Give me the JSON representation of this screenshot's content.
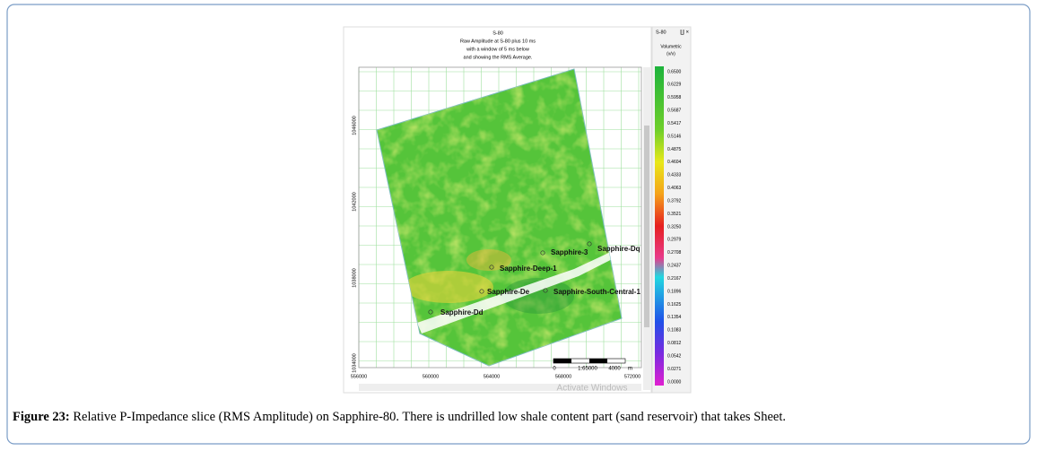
{
  "header": {
    "title": "S-80",
    "lines": [
      "Raw Amplitude at S-80 plus 10 ms",
      "with a window of 5 ms below",
      "and showing the RMS Average."
    ]
  },
  "panel": {
    "title": "S-80",
    "buttons": "∐ ×"
  },
  "colorbar": {
    "title": "Volumetric",
    "unit": "(v/v)",
    "labels": [
      "0.6500",
      "0.6229",
      "0.5958",
      "0.5687",
      "0.5417",
      "0.5146",
      "0.4875",
      "0.4604",
      "0.4333",
      "0.4063",
      "0.3792",
      "0.3521",
      "0.3250",
      "0.2979",
      "0.2708",
      "0.2437",
      "0.2167",
      "0.1896",
      "0.1625",
      "0.1354",
      "0.1083",
      "0.0812",
      "0.0542",
      "0.0271",
      "0.0000"
    ]
  },
  "axes": {
    "x": [
      "556000",
      "560000",
      "564000",
      "568000",
      "572000"
    ],
    "y": [
      "1046000",
      "1042000",
      "1038000",
      "1034000"
    ]
  },
  "wells": [
    "Sapphire-3",
    "Sapphire-Dq",
    "Sapphire-Deep-1",
    "Sapphire-De",
    "Sapphire-South-Central-1",
    "Sapphire-Dd"
  ],
  "scalebar": {
    "start": "0",
    "ratio": "1:65000",
    "end": "4000",
    "unit": "m"
  },
  "watermark": "Activate Windows",
  "caption": {
    "label": "Figure 23:",
    "text": " Relative P-Impedance slice (RMS Amplitude) on Sapphire-80. There is undrilled low shale content part (sand reservoir) that takes Sheet."
  }
}
